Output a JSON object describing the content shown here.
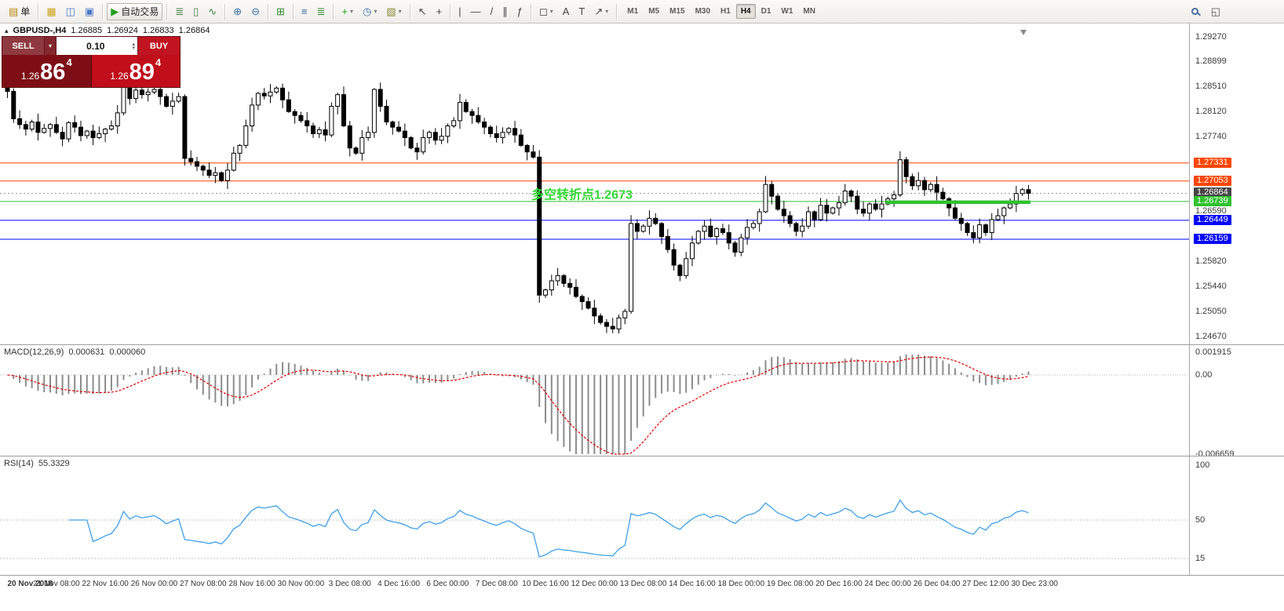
{
  "toolbar": {
    "groups_left": [
      [
        {
          "name": "new-order",
          "glyph": "▤",
          "color": "#b8860b",
          "label": "单"
        }
      ],
      [
        {
          "name": "charts",
          "glyph": "▦",
          "color": "#caa21a"
        },
        {
          "name": "profiles",
          "glyph": "◫",
          "color": "#4a78c8"
        },
        {
          "name": "data-window",
          "glyph": "▣",
          "color": "#4a78c8"
        }
      ],
      [
        {
          "name": "autotrading",
          "glyph": "▶",
          "color": "#21a121",
          "label": "自动交易",
          "button": true
        }
      ],
      [
        {
          "name": "chart-bars",
          "glyph": "≣",
          "color": "#3f7d3f"
        },
        {
          "name": "chart-candles",
          "glyph": "▯",
          "color": "#3f7d3f"
        },
        {
          "name": "chart-line",
          "glyph": "∿",
          "color": "#3f7d3f"
        }
      ],
      [
        {
          "name": "zoom-in",
          "glyph": "⊕",
          "color": "#3a6ea5"
        },
        {
          "name": "zoom-out",
          "glyph": "⊖",
          "color": "#3a6ea5"
        }
      ],
      [
        {
          "name": "tile-windows",
          "glyph": "⊞",
          "color": "#2e8b2e"
        }
      ],
      [
        {
          "name": "window-list",
          "glyph": "≡",
          "color": "#3a6ea5"
        },
        {
          "name": "arrange-windows",
          "glyph": "≣",
          "color": "#2e8b2e"
        }
      ],
      [
        {
          "name": "indicators",
          "glyph": "+",
          "color": "#19a119",
          "caret": true
        },
        {
          "name": "periods",
          "glyph": "◷",
          "color": "#3a6ea5",
          "caret": true
        },
        {
          "name": "templates",
          "glyph": "▧",
          "color": "#8a8a3a",
          "caret": true
        }
      ],
      [
        {
          "name": "cursor",
          "glyph": "↖",
          "color": "#444"
        },
        {
          "name": "crosshair",
          "glyph": "+",
          "color": "#444"
        }
      ],
      [
        {
          "name": "vertical-line",
          "glyph": "|",
          "color": "#444"
        },
        {
          "name": "horizontal-line",
          "glyph": "—",
          "color": "#444"
        },
        {
          "name": "trendline",
          "glyph": "/",
          "color": "#444"
        },
        {
          "name": "channel",
          "glyph": "∥",
          "color": "#444"
        },
        {
          "name": "fibonacci",
          "glyph": "ƒ",
          "color": "#444"
        }
      ],
      [
        {
          "name": "shapes",
          "glyph": "◻",
          "color": "#444",
          "caret": true
        },
        {
          "name": "text",
          "glyph": "A",
          "color": "#444"
        },
        {
          "name": "text-label",
          "glyph": "T",
          "color": "#444"
        },
        {
          "name": "arrows",
          "glyph": "↗",
          "color": "#444",
          "caret": true
        }
      ]
    ],
    "timeframes": [
      "M1",
      "M5",
      "M15",
      "M30",
      "H1",
      "H4",
      "D1",
      "W1",
      "MN"
    ],
    "active_timeframe": "H4",
    "groups_right": [
      [
        {
          "name": "symbol-search",
          "magnifier": true
        },
        {
          "name": "new-chart-window",
          "glyph": "◱",
          "color": "#555"
        }
      ]
    ]
  },
  "chart": {
    "symbol": "GBPUSD-,H4",
    "open": "1.26885",
    "high": "1.26924",
    "low": "1.26833",
    "close": "1.26864",
    "collapse_glyph": "▴"
  },
  "trade_panel": {
    "sell_label": "SELL",
    "buy_label": "BUY",
    "volume": "0.10",
    "sell_price": {
      "base": "1.26",
      "big": "86",
      "pip": "4"
    },
    "buy_price": {
      "base": "1.26",
      "big": "89",
      "pip": "4"
    }
  },
  "macd": {
    "name": "MACD(12,26,9)",
    "value1": "0.000631",
    "value2": "0.000060",
    "scale_max": 0.001915,
    "scale_min": -0.006659,
    "scale_labels": [
      "0.001915",
      "0.00",
      "-0.006659"
    ]
  },
  "rsi": {
    "name": "RSI(14)",
    "value": "55.3329",
    "scale_labels": [
      "100",
      "50",
      "15"
    ]
  },
  "chart_data": {
    "type": "candlestick",
    "symbol": "GBPUSD",
    "timeframe": "H4",
    "ylim": [
      1.2458,
      1.294
    ],
    "first_open": 1.2852,
    "closes": [
      1.2843,
      1.2801,
      1.2792,
      1.2785,
      1.2796,
      1.278,
      1.2786,
      1.2792,
      1.278,
      1.277,
      1.2795,
      1.2788,
      1.2775,
      1.2782,
      1.2772,
      1.2778,
      1.2785,
      1.279,
      1.281,
      1.2858,
      1.2832,
      1.2845,
      1.2838,
      1.2842,
      1.2846,
      1.2835,
      1.282,
      1.2828,
      1.2835,
      1.274,
      1.2735,
      1.2728,
      1.2722,
      1.2714,
      1.2718,
      1.2706,
      1.2722,
      1.2748,
      1.276,
      1.279,
      1.2822,
      1.284,
      1.2836,
      1.2842,
      1.2848,
      1.283,
      1.2812,
      1.2806,
      1.2798,
      1.279,
      1.2778,
      1.2784,
      1.2776,
      1.282,
      1.2838,
      1.279,
      1.2756,
      1.2748,
      1.2772,
      1.278,
      1.2846,
      1.282,
      1.2796,
      1.2788,
      1.2782,
      1.2772,
      1.2756,
      1.275,
      1.2772,
      1.278,
      1.2768,
      1.2774,
      1.279,
      1.2798,
      1.2826,
      1.2812,
      1.2806,
      1.2796,
      1.2788,
      1.2778,
      1.2772,
      1.278,
      1.2786,
      1.2776,
      1.276,
      1.275,
      1.2742,
      1.253,
      1.2538,
      1.2552,
      1.256,
      1.2548,
      1.2542,
      1.2528,
      1.252,
      1.251,
      1.2498,
      1.2488,
      1.2482,
      1.2478,
      1.2495,
      1.2505,
      1.264,
      1.2628,
      1.2636,
      1.2648,
      1.264,
      1.262,
      1.26,
      1.2576,
      1.256,
      1.2586,
      1.261,
      1.2628,
      1.2636,
      1.262,
      1.2632,
      1.2626,
      1.261,
      1.2596,
      1.2618,
      1.2634,
      1.264,
      1.2658,
      1.27,
      1.2682,
      1.2662,
      1.2652,
      1.264,
      1.2628,
      1.2636,
      1.2658,
      1.2646,
      1.2668,
      1.2656,
      1.2664,
      1.2672,
      1.269,
      1.2682,
      1.2662,
      1.2656,
      1.267,
      1.2662,
      1.267,
      1.2678,
      1.2684,
      1.2738,
      1.2712,
      1.2698,
      1.2706,
      1.2692,
      1.27,
      1.2688,
      1.2678,
      1.2664,
      1.2648,
      1.264,
      1.2626,
      1.2618,
      1.2638,
      1.2626,
      1.2646,
      1.2652,
      1.2664,
      1.267,
      1.2686,
      1.2692,
      1.26864
    ],
    "price_ticks": [
      "1.29270",
      "1.28899",
      "1.28510",
      "1.28120",
      "1.27740",
      "1.26590",
      "1.25820",
      "1.25440",
      "1.25050",
      "1.24670"
    ],
    "levels": [
      {
        "price": "1.27331",
        "color": "#FF4500"
      },
      {
        "price": "1.27053",
        "color": "#FF4500"
      },
      {
        "price": "1.26864",
        "color": "#464646",
        "current": true
      },
      {
        "price": "1.26739",
        "color": "#2FC22F"
      },
      {
        "price": "1.26449",
        "color": "#0000FF"
      },
      {
        "price": "1.26159",
        "color": "#0000FF"
      }
    ],
    "support_segment": {
      "price": 1.2673,
      "start_index": 144,
      "end_index": 167,
      "color": "#2FC22F"
    },
    "annotation": {
      "text": "多空转折点1.2673",
      "price": 1.2673,
      "index": 86,
      "color": "#33D833"
    },
    "x_labels": [
      "20 Nov 2018",
      "21 Nov 08:00",
      "22 Nov 16:00",
      "26 Nov 00:00",
      "27 Nov 08:00",
      "28 Nov 16:00",
      "30 Nov 00:00",
      "3 Dec 08:00",
      "4 Dec 16:00",
      "6 Dec 00:00",
      "7 Dec 08:00",
      "10 Dec 16:00",
      "12 Dec 00:00",
      "13 Dec 08:00",
      "14 Dec 16:00",
      "18 Dec 00:00",
      "19 Dec 08:00",
      "20 Dec 16:00",
      "24 Dec 00:00",
      "26 Dec 04:00",
      "27 Dec 12:00",
      "30 Dec 23:00"
    ]
  }
}
